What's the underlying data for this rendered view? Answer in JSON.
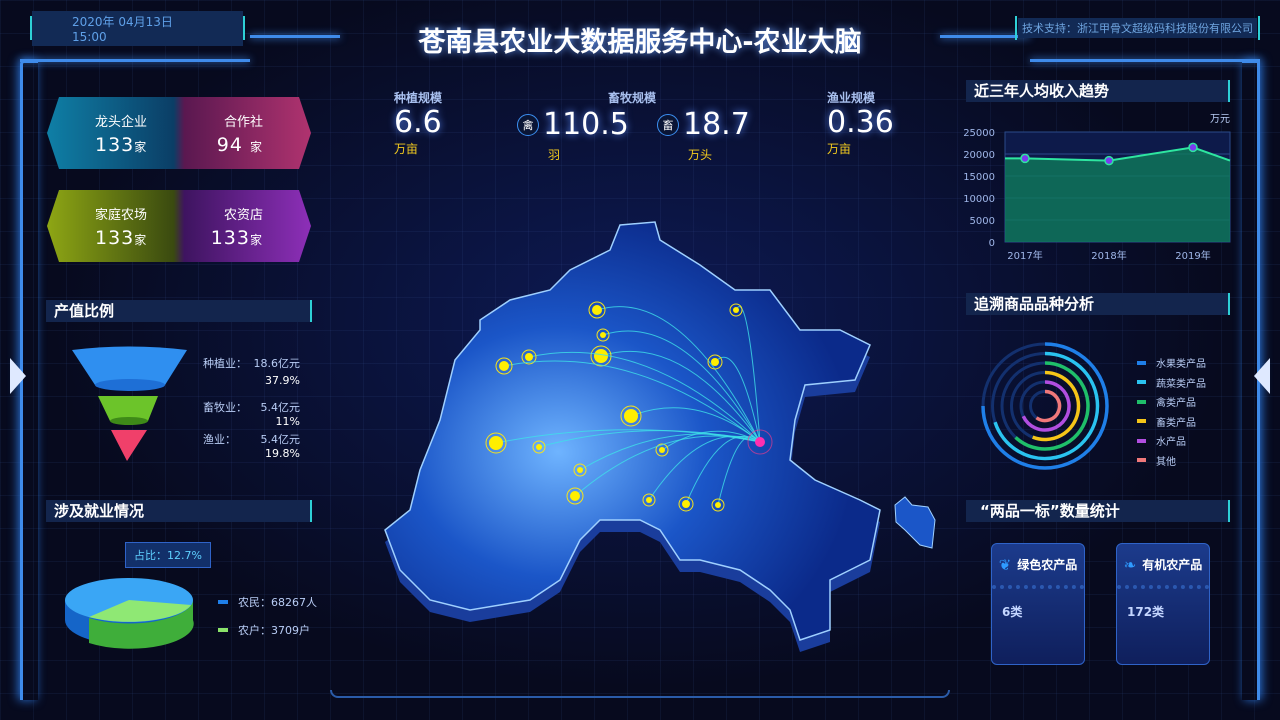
{
  "header": {
    "datetime": "2020年 04月13日 15:00",
    "title": "苍南县农业大数据服务中心-农业大脑",
    "support": "技术支持：浙江甲骨文超级码科技股份有限公司"
  },
  "cards": [
    {
      "label": "龙头企业",
      "value": "133",
      "unit": "家",
      "color": "#13a6c8"
    },
    {
      "label": "合作社",
      "value": "94",
      "unit": "家",
      "color": "#d0397f"
    },
    {
      "label": "家庭农场",
      "value": "133",
      "unit": "家",
      "color": "#a8c514"
    },
    {
      "label": "农资店",
      "value": "133",
      "unit": "家",
      "color": "#a13bd6"
    }
  ],
  "stats": {
    "planting": {
      "label": "种植规模",
      "value": "6.6",
      "unit": "万亩"
    },
    "livestock": {
      "label": "畜牧规模",
      "poultry": {
        "icon": "禽",
        "value": "110.5",
        "unit": "羽"
      },
      "cattle": {
        "icon": "畜",
        "value": "18.7",
        "unit": "万头"
      }
    },
    "fishery": {
      "label": "渔业规模",
      "value": "0.36",
      "unit": "万亩"
    }
  },
  "output_ratio": {
    "title": "产值比例",
    "items": [
      {
        "name": "种植业：",
        "value": "18.6亿元",
        "pct": "37.9%",
        "color": "#2f8ff0"
      },
      {
        "name": "畜牧业：",
        "value": "5.4亿元",
        "pct": "11%",
        "color": "#6cc42a"
      },
      {
        "name": "渔业：",
        "value": "5.4亿元",
        "pct": "19.8%",
        "color": "#f0406a"
      }
    ]
  },
  "employment": {
    "title": "涉及就业情况",
    "tooltip": "占比：12.7%",
    "legend": [
      {
        "label": "农民：68267人",
        "color": "#1f7fe8"
      },
      {
        "label": "农户：3709户",
        "color": "#8be36a"
      }
    ]
  },
  "chart_data": [
    {
      "type": "area",
      "title": "近三年人均收入趋势",
      "unit": "万元",
      "categories": [
        "2017年",
        "2018年",
        "2019年"
      ],
      "values": [
        19000,
        18500,
        21500
      ],
      "trailing_value": 18500,
      "ylim": [
        0,
        25000
      ],
      "yticks": [
        0,
        5000,
        10000,
        15000,
        20000,
        25000
      ],
      "grid": true,
      "color": "#2ee6a0"
    },
    {
      "type": "radial-bar",
      "title": "追溯商品品种分析",
      "legend_placement": "right",
      "series": [
        {
          "name": "水果类产品",
          "value": 0.75,
          "color": "#1f7fe8"
        },
        {
          "name": "蔬菜类产品",
          "value": 0.7,
          "color": "#2ac3f0"
        },
        {
          "name": "禽类产品",
          "value": 0.62,
          "color": "#1fbf6a"
        },
        {
          "name": "畜类产品",
          "value": 0.56,
          "color": "#f5c518"
        },
        {
          "name": "水产品",
          "value": 0.68,
          "color": "#b14ee0"
        },
        {
          "name": "其他",
          "value": 0.6,
          "color": "#f0787a"
        }
      ]
    }
  ],
  "products": {
    "title": "“两品一标”数量统计",
    "items": [
      {
        "label": "绿色农产品",
        "value": "6类"
      },
      {
        "label": "有机农产品",
        "value": "172类"
      }
    ]
  }
}
